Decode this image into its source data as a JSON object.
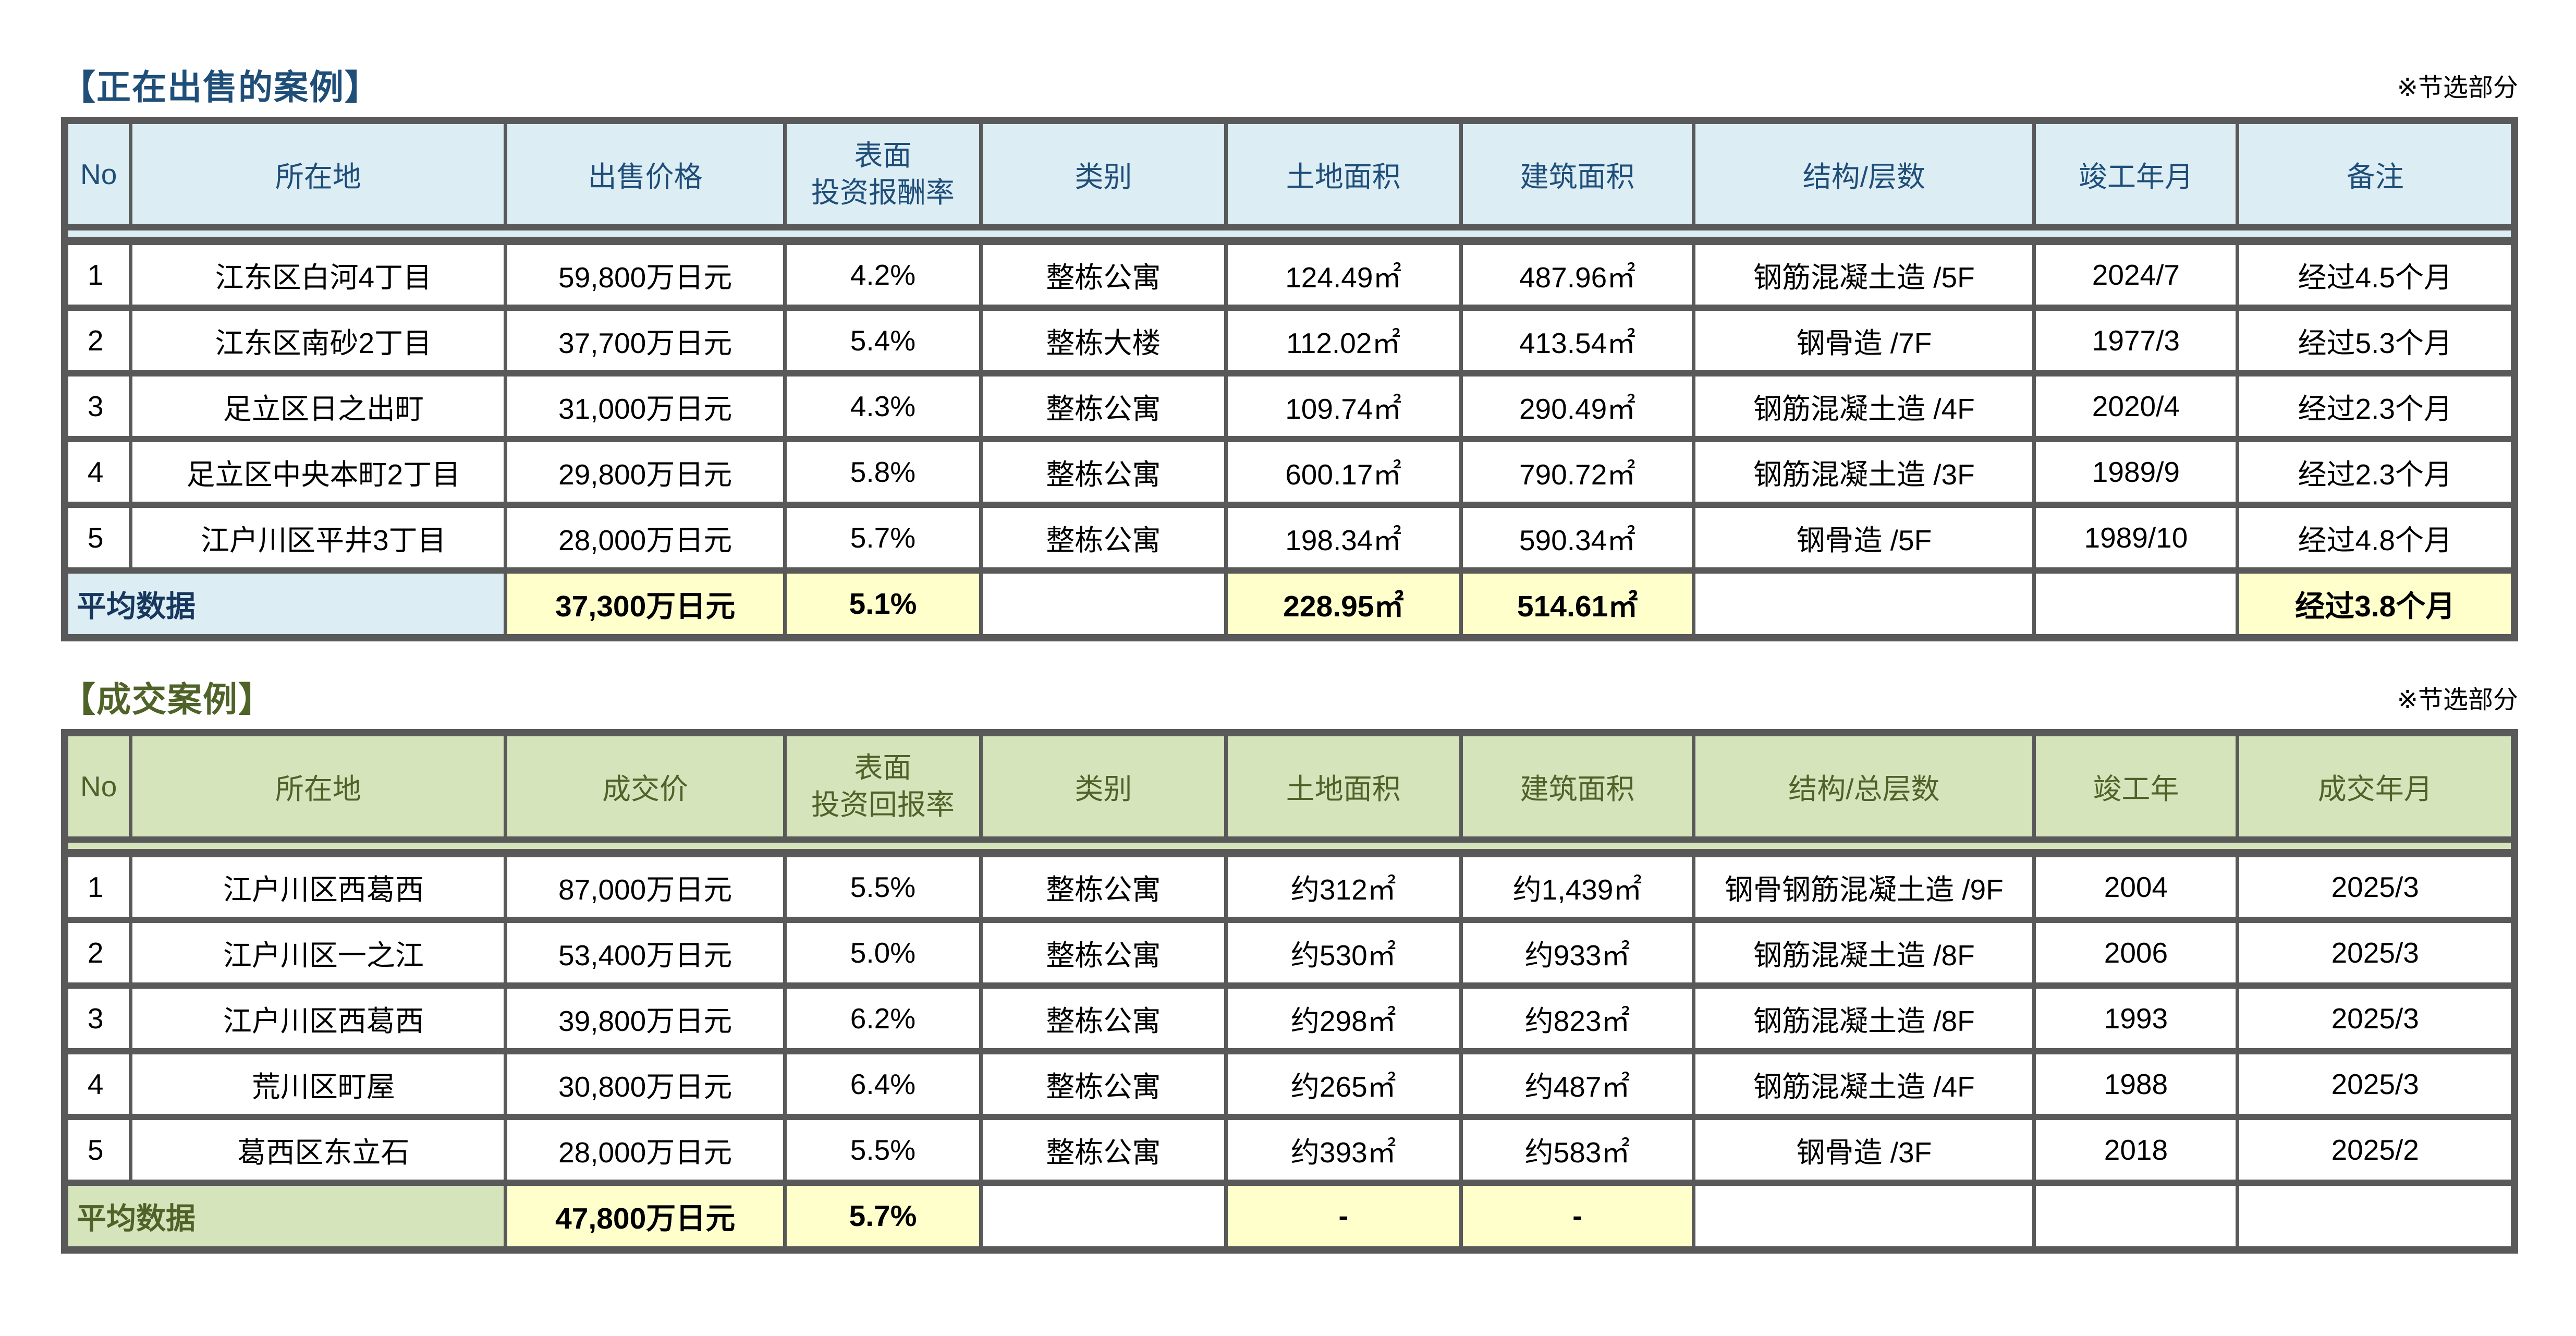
{
  "excerpt_note": "※节选部分",
  "table1": {
    "title": "【正在出售的案例】",
    "headers": [
      "No",
      "所在地",
      "出售价格",
      "表面\n投资报酬率",
      "类别",
      "土地面积",
      "建筑面积",
      "结构/层数",
      "竣工年月",
      "备注"
    ],
    "rows": [
      {
        "cells": [
          "1",
          "江东区白河4丁目",
          "59,800万日元",
          "4.2%",
          "整栋公寓",
          "124.49㎡",
          "487.96㎡",
          "钢筋混凝土造 /5F",
          "2024/7",
          "经过4.5个月"
        ]
      },
      {
        "cells": [
          "2",
          "江东区南砂2丁目",
          "37,700万日元",
          "5.4%",
          "整栋大楼",
          "112.02㎡",
          "413.54㎡",
          "钢骨造 /7F",
          "1977/3",
          "经过5.3个月"
        ]
      },
      {
        "cells": [
          "3",
          "足立区日之出町",
          "31,000万日元",
          "4.3%",
          "整栋公寓",
          "109.74㎡",
          "290.49㎡",
          "钢筋混凝土造 /4F",
          "2020/4",
          "经过2.3个月"
        ]
      },
      {
        "cells": [
          "4",
          "足立区中央本町2丁目",
          "29,800万日元",
          "5.8%",
          "整栋公寓",
          "600.17㎡",
          "790.72㎡",
          "钢筋混凝土造 /3F",
          "1989/9",
          "经过2.3个月"
        ]
      },
      {
        "cells": [
          "5",
          "江户川区平井3丁目",
          "28,000万日元",
          "5.7%",
          "整栋公寓",
          "198.34㎡",
          "590.34㎡",
          "钢骨造 /5F",
          "1989/10",
          "经过4.8个月"
        ]
      }
    ],
    "average": {
      "label": "平均数据",
      "values": [
        "37,300万日元",
        "5.1%",
        "",
        "228.95㎡",
        "514.61㎡",
        "",
        "",
        "经过3.8个月"
      ]
    }
  },
  "table2": {
    "title": "【成交案例】",
    "headers": [
      "No",
      "所在地",
      "成交价",
      "表面\n投资回报率",
      "类别",
      "土地面积",
      "建筑面积",
      "结构/总层数",
      "竣工年",
      "成交年月"
    ],
    "rows": [
      {
        "cells": [
          "1",
          "江户川区西葛西",
          "87,000万日元",
          "5.5%",
          "整栋公寓",
          "约312㎡",
          "约1,439㎡",
          "钢骨钢筋混凝土造 /9F",
          "2004",
          "2025/3"
        ]
      },
      {
        "cells": [
          "2",
          "江户川区一之江",
          "53,400万日元",
          "5.0%",
          "整栋公寓",
          "约530㎡",
          "约933㎡",
          "钢筋混凝土造 /8F",
          "2006",
          "2025/3"
        ]
      },
      {
        "cells": [
          "3",
          "江户川区西葛西",
          "39,800万日元",
          "6.2%",
          "整栋公寓",
          "约298㎡",
          "约823㎡",
          "钢筋混凝土造 /8F",
          "1993",
          "2025/3"
        ]
      },
      {
        "cells": [
          "4",
          "荒川区町屋",
          "30,800万日元",
          "6.4%",
          "整栋公寓",
          "约265㎡",
          "约487㎡",
          "钢筋混凝土造 /4F",
          "1988",
          "2025/3"
        ]
      },
      {
        "cells": [
          "5",
          "葛西区东立石",
          "28,000万日元",
          "5.5%",
          "整栋公寓",
          "约393㎡",
          "约583㎡",
          "钢骨造 /3F",
          "2018",
          "2025/2"
        ]
      }
    ],
    "average": {
      "label": "平均数据",
      "values": [
        "47,800万日元",
        "5.7%",
        "",
        "-",
        "-",
        "",
        "",
        ""
      ]
    }
  }
}
